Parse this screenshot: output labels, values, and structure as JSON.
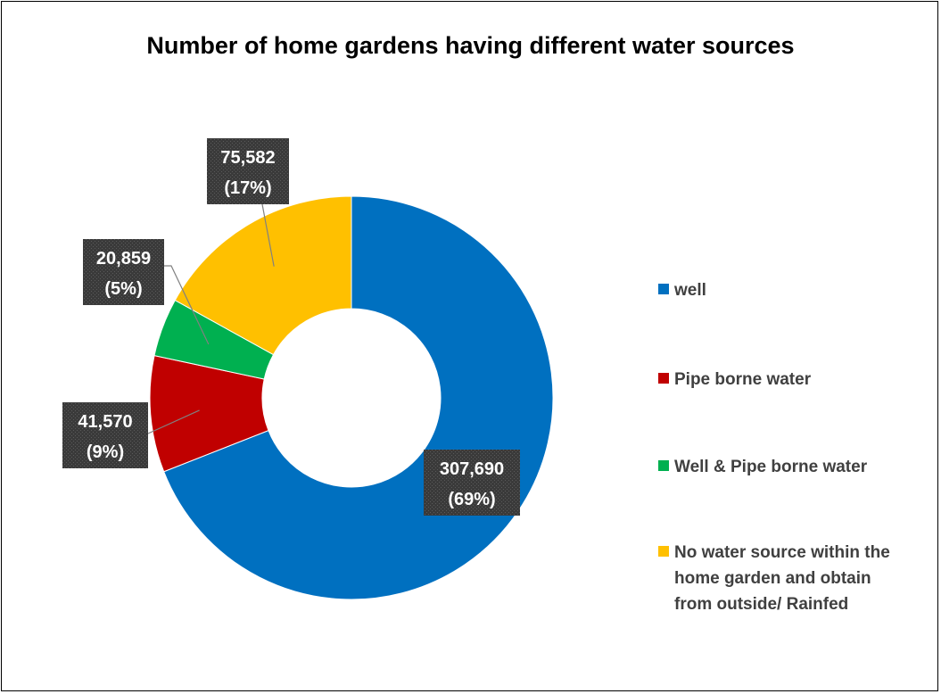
{
  "chart_data": {
    "type": "pie",
    "variant": "doughnut",
    "title": "Number of home gardens having different water sources",
    "categories": [
      "well",
      "Pipe borne water",
      "Well & Pipe borne water",
      "No water source within the home garden and obtain from outside/ Rainfed"
    ],
    "values": [
      307690,
      41570,
      20859,
      75582
    ],
    "percent_labels": [
      "(69%)",
      "(9%)",
      "(5%)",
      "(17%)"
    ],
    "value_labels": [
      "307,690",
      "41,570",
      "20,859",
      "75,582"
    ],
    "colors": [
      "#0070C0",
      "#C00000",
      "#00B050",
      "#FFC000"
    ],
    "legend_position": "right",
    "legend": [
      {
        "label": "well",
        "lines": [
          "well"
        ]
      },
      {
        "label": "Pipe borne water",
        "lines": [
          "Pipe borne water"
        ]
      },
      {
        "label": "Well & Pipe borne water",
        "lines": [
          "Well & Pipe borne water"
        ]
      },
      {
        "label": "No water source within the home garden and obtain from outside/ Rainfed",
        "lines": [
          "No water source within the",
          "home garden and obtain",
          "from outside/ Rainfed"
        ]
      }
    ]
  }
}
